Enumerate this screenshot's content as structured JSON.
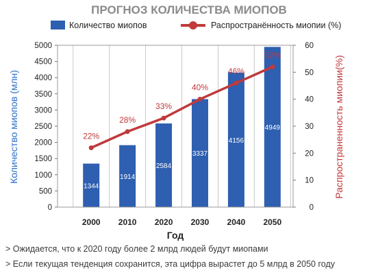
{
  "chart_data": {
    "type": "bar+line",
    "title": "ПРОГНОЗ КОЛИЧЕСТВА МИОПОВ",
    "xlabel": "Год",
    "ylabel_left": "Количество миопов (млн)",
    "ylabel_right": "Распространенность миопии(%)",
    "categories": [
      "2000",
      "2010",
      "2020",
      "2030",
      "2040",
      "2050"
    ],
    "series": [
      {
        "name": "Количество миопов",
        "type": "bar",
        "axis": "left",
        "color": "#2e5fb0",
        "values": [
          1344,
          1914,
          2584,
          3337,
          4156,
          4949
        ],
        "labels": [
          "1344",
          "1914",
          "2584",
          "3337",
          "4156",
          "4949"
        ]
      },
      {
        "name": "Распространённость миопии (%)",
        "type": "line",
        "axis": "right",
        "color": "#c0393b",
        "values": [
          22,
          28,
          33,
          40,
          46,
          52
        ],
        "labels": [
          "22%",
          "28%",
          "33%",
          "40%",
          "46%",
          "52%"
        ]
      }
    ],
    "ylim_left": [
      0,
      5000
    ],
    "yticks_left": [
      "0",
      "500",
      "1000",
      "1500",
      "2000",
      "2500",
      "3000",
      "3500",
      "4000",
      "4500",
      "5000"
    ],
    "ylim_right": [
      0,
      60
    ],
    "yticks_right": [
      "0",
      "10",
      "20",
      "30",
      "40",
      "50",
      "60"
    ],
    "grid": "vertical",
    "legend_position": "top",
    "colors": {
      "title": "#8a8a8a",
      "left_axis_label": "#2e6fc9",
      "right_axis_label": "#c0393b",
      "bar_label": "#ffffff",
      "line_label": "#c0393b",
      "axis_text": "#222222",
      "grid": "#c8c8c8"
    }
  },
  "notes": [
    "> Ожидается, что к 2020 году более 2 млрд людей будут миопами",
    "> Если текущая тенденция сохранится, эта цифра вырастет до 5 млрд в 2050 году"
  ]
}
